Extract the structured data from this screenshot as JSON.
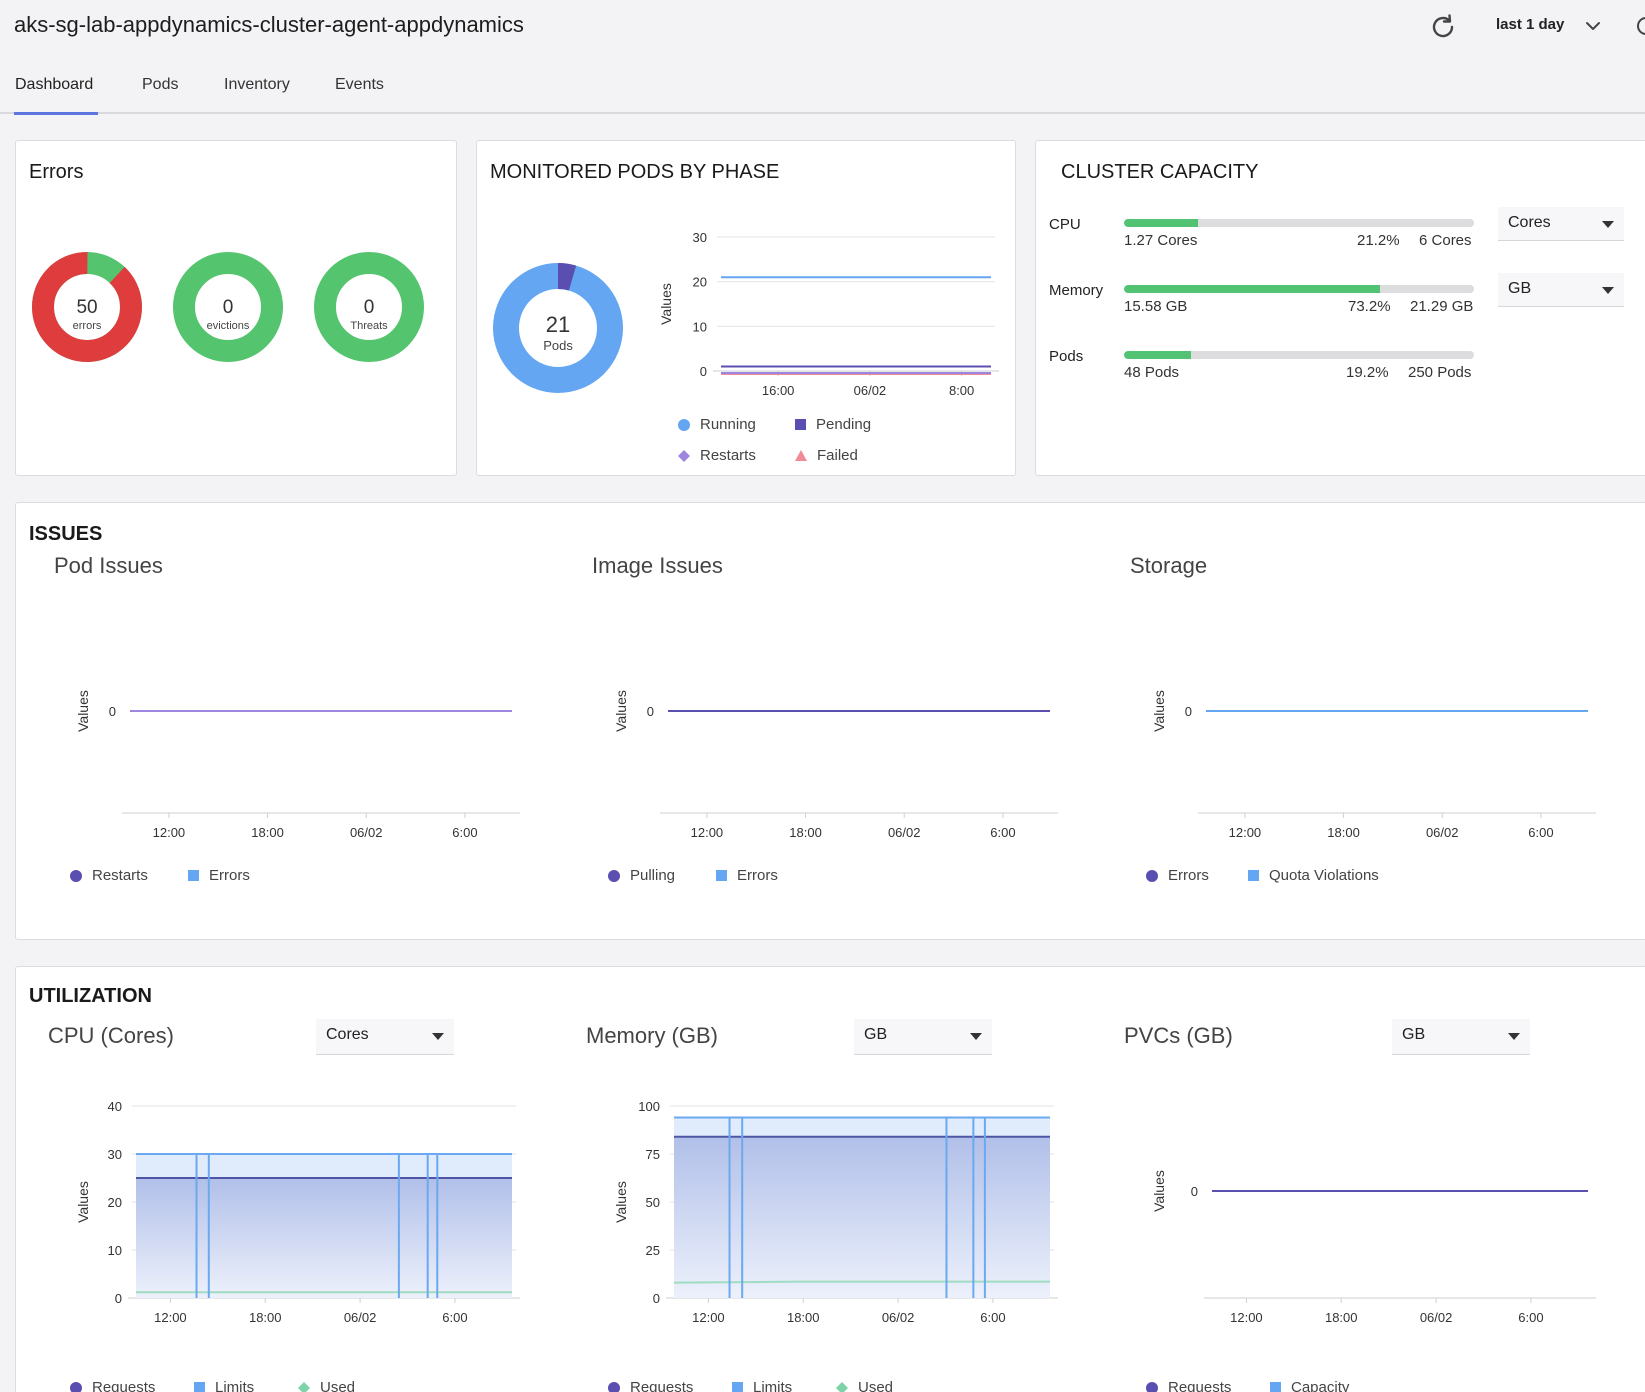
{
  "header": {
    "title": "aks-sg-lab-appdynamics-cluster-agent-appdynamics",
    "range_label": "last 1 day"
  },
  "tabs": [
    {
      "label": "Dashboard",
      "active": true
    },
    {
      "label": "Pods",
      "active": false
    },
    {
      "label": "Inventory",
      "active": false
    },
    {
      "label": "Events",
      "active": false
    }
  ],
  "errors_card": {
    "title": "Errors",
    "donuts": [
      {
        "value": "50",
        "label": "errors",
        "fraction_red": 0.88
      },
      {
        "value": "0",
        "label": "evictions",
        "fraction_red": 0
      },
      {
        "value": "0",
        "label": "Threats",
        "fraction_red": 0
      }
    ]
  },
  "pods_phase_card": {
    "title": "MONITORED PODS BY PHASE",
    "donut": {
      "value": "21",
      "label": "Pods",
      "fraction_pending": 0.045
    },
    "legend": [
      "Running",
      "Pending",
      "Restarts",
      "Failed"
    ]
  },
  "cluster_capacity": {
    "title": "CLUSTER CAPACITY",
    "rows": [
      {
        "label": "CPU",
        "used": "1.27",
        "used_unit": "Cores",
        "percent": "21.2%",
        "total": "6",
        "total_unit": "Cores",
        "fill": 0.212,
        "unit_select": "Cores"
      },
      {
        "label": "Memory",
        "used": "15.58",
        "used_unit": "GB",
        "percent": "73.2%",
        "total": "21.29",
        "total_unit": "GB",
        "fill": 0.732,
        "unit_select": "GB"
      },
      {
        "label": "Pods",
        "used": "48",
        "used_unit": "Pods",
        "percent": "19.2%",
        "total": "250",
        "total_unit": "Pods",
        "fill": 0.192,
        "unit_select": null
      }
    ]
  },
  "issues": {
    "title": "ISSUES",
    "charts": [
      {
        "title": "Pod Issues",
        "legend": [
          "Restarts",
          "Errors"
        ]
      },
      {
        "title": "Image Issues",
        "legend": [
          "Pulling",
          "Errors"
        ]
      },
      {
        "title": "Storage",
        "legend": [
          "Errors",
          "Quota Violations"
        ]
      }
    ]
  },
  "utilization": {
    "title": "UTILIZATION",
    "charts": [
      {
        "title": "CPU (Cores)",
        "unit_select": "Cores",
        "legend": [
          "Requests",
          "Limits",
          "Used"
        ]
      },
      {
        "title": "Memory (GB)",
        "unit_select": "GB",
        "legend": [
          "Requests",
          "Limits",
          "Used"
        ]
      },
      {
        "title": "PVCs (GB)",
        "unit_select": "GB",
        "legend": [
          "Requests",
          "Capacity"
        ]
      }
    ]
  },
  "colors": {
    "red": "#df3d3d",
    "green": "#55c46e",
    "blue": "#64a6f2",
    "indigo": "#5a4fb0",
    "lavender": "#9d86e0",
    "pink": "#f08a96",
    "teal": "#7dd3a8"
  },
  "chart_data": [
    {
      "type": "line",
      "ylabel": "Values",
      "x_ticks": [
        "16:00",
        "06/02",
        "8:00"
      ],
      "y_ticks": [
        0,
        10,
        20,
        30
      ],
      "ylim": [
        0,
        30
      ],
      "series": [
        {
          "name": "Running",
          "values": [
            21,
            21,
            21,
            21
          ]
        },
        {
          "name": "Pending",
          "values": [
            1,
            1,
            1,
            1
          ]
        },
        {
          "name": "Restarts",
          "values": [
            0,
            0,
            0,
            0
          ]
        },
        {
          "name": "Failed",
          "values": [
            0,
            0,
            0,
            0
          ]
        }
      ]
    },
    {
      "type": "line",
      "ylabel": "Values",
      "x_ticks": [
        "12:00",
        "18:00",
        "06/02",
        "6:00"
      ],
      "y_ticks": [
        0
      ],
      "series": [
        {
          "name": "Restarts",
          "values": [
            0,
            0,
            0,
            0
          ]
        },
        {
          "name": "Errors",
          "values": [
            0,
            0,
            0,
            0
          ]
        }
      ]
    },
    {
      "type": "line",
      "ylabel": "Values",
      "x_ticks": [
        "12:00",
        "18:00",
        "06/02",
        "6:00"
      ],
      "y_ticks": [
        0
      ],
      "series": [
        {
          "name": "Pulling",
          "values": [
            0,
            0,
            0,
            0
          ]
        },
        {
          "name": "Errors",
          "values": [
            0,
            0,
            0,
            0
          ]
        }
      ]
    },
    {
      "type": "line",
      "ylabel": "Values",
      "x_ticks": [
        "12:00",
        "18:00",
        "06/02",
        "6:00"
      ],
      "y_ticks": [
        0
      ],
      "series": [
        {
          "name": "Errors",
          "values": [
            0,
            0,
            0,
            0
          ]
        },
        {
          "name": "Quota Violations",
          "values": [
            0,
            0,
            0,
            0
          ]
        }
      ]
    },
    {
      "type": "area",
      "ylabel": "Values",
      "x_ticks": [
        "12:00",
        "18:00",
        "06/02",
        "6:00"
      ],
      "y_ticks": [
        0,
        10,
        20,
        30,
        40
      ],
      "ylim": [
        0,
        40
      ],
      "series": [
        {
          "name": "Requests",
          "values": [
            25,
            25,
            25,
            25
          ]
        },
        {
          "name": "Limits",
          "values": [
            30,
            30,
            30,
            30
          ]
        },
        {
          "name": "Used",
          "values": [
            1.2,
            1.2,
            1.2,
            1.2
          ]
        }
      ]
    },
    {
      "type": "area",
      "ylabel": "Values",
      "x_ticks": [
        "12:00",
        "18:00",
        "06/02",
        "6:00"
      ],
      "y_ticks": [
        0,
        25,
        50,
        75,
        100
      ],
      "ylim": [
        0,
        100
      ],
      "series": [
        {
          "name": "Requests",
          "values": [
            84,
            84,
            84,
            84
          ]
        },
        {
          "name": "Limits",
          "values": [
            94,
            94,
            94,
            94
          ]
        },
        {
          "name": "Used",
          "values": [
            8,
            8.5,
            8.5,
            8.5
          ]
        }
      ]
    },
    {
      "type": "line",
      "ylabel": "Values",
      "x_ticks": [
        "12:00",
        "18:00",
        "06/02",
        "6:00"
      ],
      "y_ticks": [
        0
      ],
      "series": [
        {
          "name": "Requests",
          "values": [
            0,
            0,
            0,
            0
          ]
        },
        {
          "name": "Capacity",
          "values": [
            0,
            0,
            0,
            0
          ]
        }
      ]
    }
  ]
}
